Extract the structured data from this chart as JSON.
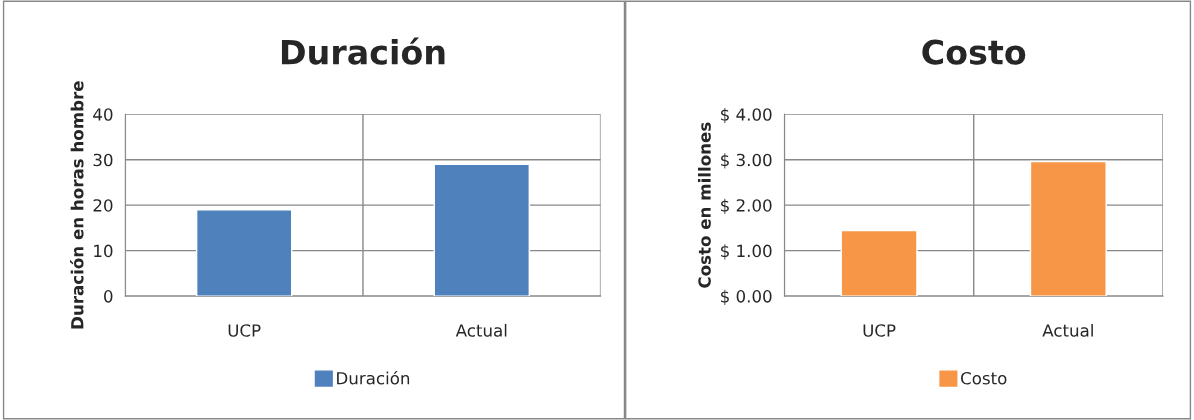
{
  "chart_data": [
    {
      "type": "bar",
      "title": "Duración",
      "ylabel": "Duración en horas hombre",
      "categories": [
        "UCP",
        "Actual"
      ],
      "series": [
        {
          "name": "Duración",
          "color": "#4f81bd",
          "values": [
            19,
            29
          ]
        }
      ],
      "ylim": [
        0,
        40
      ],
      "yticks": [
        0,
        10,
        20,
        30,
        40
      ],
      "grid": true,
      "legend": "bottom"
    },
    {
      "type": "bar",
      "title": "Costo",
      "ylabel": "Costo en millones",
      "categories": [
        "UCP",
        "Actual"
      ],
      "series": [
        {
          "name": "Costo",
          "color": "#f79646",
          "values": [
            1.44,
            2.96
          ]
        }
      ],
      "ylim": [
        0,
        4
      ],
      "yticks": [
        {
          "value": 0,
          "label": "$ 0.00"
        },
        {
          "value": 1,
          "label": "$ 1.00"
        },
        {
          "value": 2,
          "label": "$ 2.00"
        },
        {
          "value": 3,
          "label": "$ 3.00"
        },
        {
          "value": 4,
          "label": "$ 4.00"
        }
      ],
      "grid": true,
      "legend": "bottom"
    }
  ]
}
